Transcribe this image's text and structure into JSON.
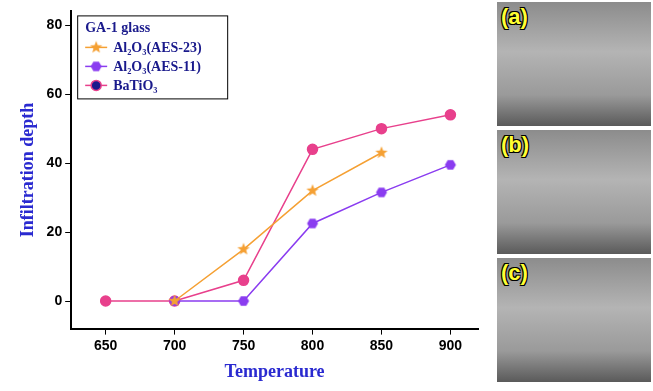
{
  "chart_data": {
    "type": "line",
    "x_label": "Temperature",
    "y_label": "Infiltration depth",
    "legend_title": "GA-1 glass",
    "legend": "upper left",
    "grid": false,
    "x": [
      650,
      700,
      750,
      800,
      850,
      900
    ],
    "xlim": [
      625,
      920
    ],
    "xticks": [
      650,
      700,
      750,
      800,
      850,
      900
    ],
    "ylim": [
      -8,
      84
    ],
    "yticks": [
      0,
      20,
      40,
      60,
      80
    ],
    "series": [
      {
        "name": "Al₂O₃(AES-23)",
        "color": "#f5a033",
        "marker": "star",
        "line_style": "solid",
        "values": [
          null,
          0,
          15,
          32,
          43,
          null
        ]
      },
      {
        "name": "Al₂O₃(AES-11)",
        "color": "#8a3cf0",
        "marker": "hexagon",
        "line_style": "solid",
        "values": [
          null,
          0,
          0,
          22.5,
          31.5,
          39.5
        ]
      },
      {
        "name": "BaTiO₃",
        "color": "#e8408c",
        "marker": "circle",
        "line_style": "solid",
        "values": [
          0,
          0,
          6,
          44,
          50,
          54
        ]
      }
    ]
  },
  "panels": [
    {
      "label": "(a)"
    },
    {
      "label": "(b)"
    },
    {
      "label": "(c)"
    }
  ]
}
